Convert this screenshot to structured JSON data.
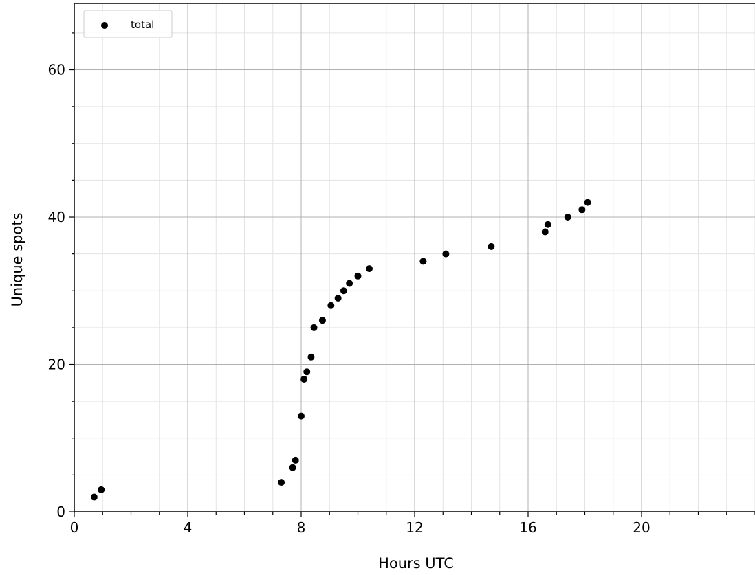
{
  "chart_data": {
    "type": "scatter",
    "title": "",
    "xlabel": "Hours UTC",
    "ylabel": "Unique spots",
    "xlim": [
      0,
      24
    ],
    "ylim": [
      0,
      69
    ],
    "x_ticks": [
      0,
      4,
      8,
      12,
      16,
      20
    ],
    "y_ticks": [
      0,
      20,
      40,
      60
    ],
    "x_minor_step": 1,
    "y_minor_step": 5,
    "grid": true,
    "legend_position": "top-left",
    "series": [
      {
        "name": "total",
        "color": "#000000",
        "points": [
          {
            "x": 0.7,
            "y": 2
          },
          {
            "x": 0.95,
            "y": 3
          },
          {
            "x": 7.3,
            "y": 4
          },
          {
            "x": 7.7,
            "y": 6
          },
          {
            "x": 7.8,
            "y": 7
          },
          {
            "x": 8.0,
            "y": 13
          },
          {
            "x": 8.1,
            "y": 18
          },
          {
            "x": 8.2,
            "y": 19
          },
          {
            "x": 8.35,
            "y": 21
          },
          {
            "x": 8.45,
            "y": 25
          },
          {
            "x": 8.75,
            "y": 26
          },
          {
            "x": 9.05,
            "y": 28
          },
          {
            "x": 9.3,
            "y": 29
          },
          {
            "x": 9.5,
            "y": 30
          },
          {
            "x": 9.7,
            "y": 31
          },
          {
            "x": 10.0,
            "y": 32
          },
          {
            "x": 10.4,
            "y": 33
          },
          {
            "x": 12.3,
            "y": 34
          },
          {
            "x": 13.1,
            "y": 35
          },
          {
            "x": 14.7,
            "y": 36
          },
          {
            "x": 16.6,
            "y": 38
          },
          {
            "x": 16.7,
            "y": 39
          },
          {
            "x": 17.4,
            "y": 40
          },
          {
            "x": 17.9,
            "y": 41
          },
          {
            "x": 18.1,
            "y": 42
          }
        ]
      }
    ]
  }
}
